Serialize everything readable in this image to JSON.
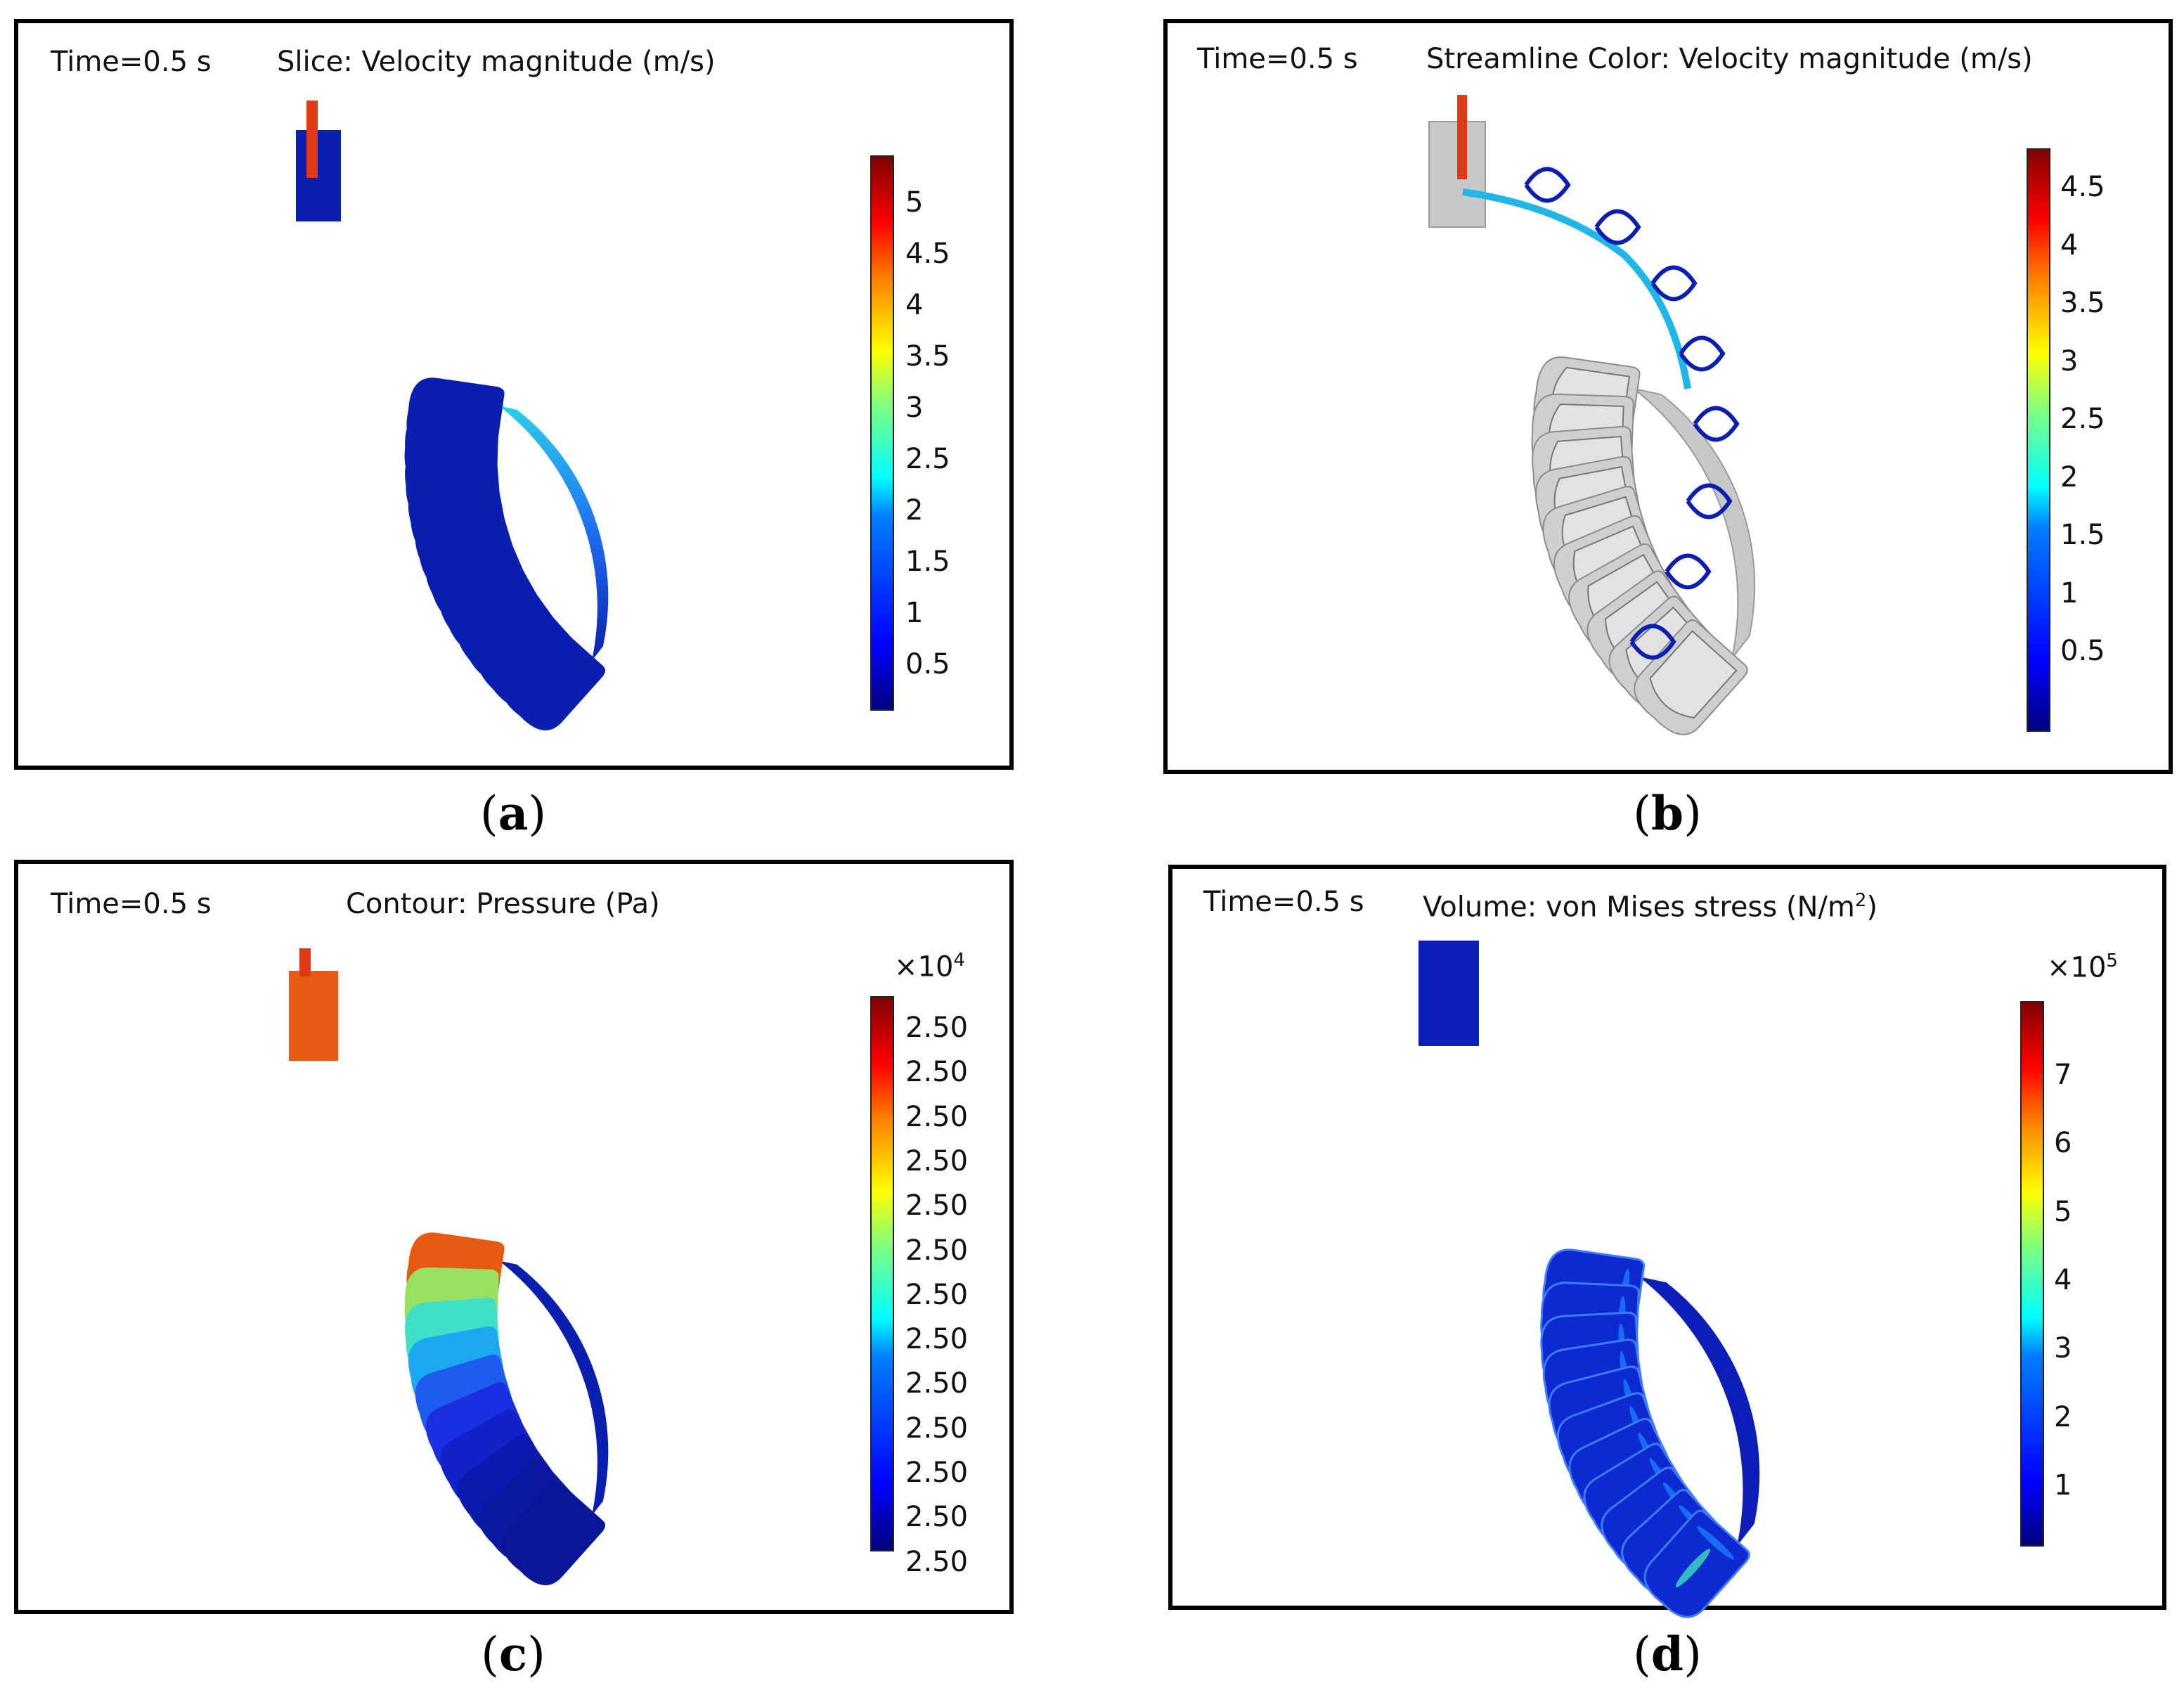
{
  "panels": {
    "a": {
      "time": "Time=0.5 s",
      "title": "Slice: Velocity magnitude (m/s)",
      "caption_letter": "a",
      "ticks": [
        "5",
        "4.5",
        "4",
        "3.5",
        "3",
        "2.5",
        "2",
        "1.5",
        "1",
        "0.5"
      ]
    },
    "b": {
      "time": "Time=0.5 s",
      "title": "Streamline Color: Velocity magnitude (m/s)",
      "caption_letter": "b",
      "ticks": [
        "4.5",
        "4",
        "3.5",
        "3",
        "2.5",
        "2",
        "1.5",
        "1",
        "0.5"
      ]
    },
    "c": {
      "time": "Time=0.5 s",
      "title": "Contour: Pressure (Pa)",
      "caption_letter": "c",
      "multiplier": "×10",
      "multiplier_exp": "4",
      "ticks": [
        "2.50",
        "2.50",
        "2.50",
        "2.50",
        "2.50",
        "2.50",
        "2.50",
        "2.50",
        "2.50",
        "2.50",
        "2.50",
        "2.50",
        "2.50"
      ]
    },
    "d": {
      "time": "Time=0.5 s",
      "title_prefix": "Volume: von Mises stress (N/m",
      "title_exp": "2",
      "title_suffix": ")",
      "caption_letter": "d",
      "multiplier": "×10",
      "multiplier_exp": "5",
      "ticks": [
        "7",
        "6",
        "5",
        "4",
        "3",
        "2",
        "1"
      ]
    }
  },
  "colors": {
    "frame": "#000000",
    "gripper_blue": "#0a1fb0",
    "gray_body": "#c8c8c8"
  }
}
